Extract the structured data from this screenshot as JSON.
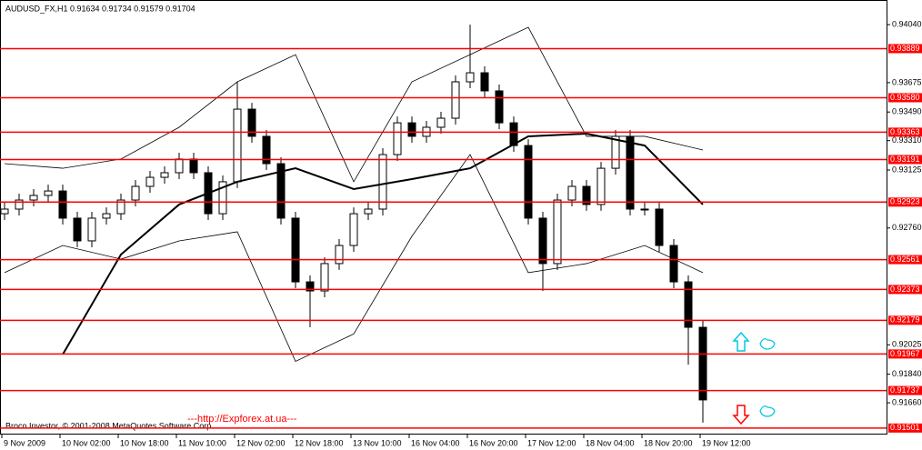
{
  "chart_data": {
    "type": "candlestick",
    "title": "AUDUSD_FX,H1  0.91634 0.91734 0.91579 0.91704",
    "footer": "Broco Investor, © 2001-2008 MetaQuotes Software Corp.",
    "link": "---http://Expforex.at.ua---",
    "categories": [
      "9 Nov 2009",
      "10 Nov 02:00",
      "10 Nov 18:00",
      "11 Nov 10:00",
      "12 Nov 02:00",
      "12 Nov 18:00",
      "13 Nov 10:00",
      "16 Nov 04:00",
      "16 Nov 20:00",
      "17 Nov 12:00",
      "18 Nov 04:00",
      "18 Nov 20:00",
      "19 Nov 12:00"
    ],
    "open": [
      0.9285,
      0.92879,
      0.92936,
      0.92965,
      0.92993,
      0.92822,
      0.92679,
      0.92822,
      0.9285,
      0.92936,
      0.93022,
      0.93079,
      0.93108,
      0.93194,
      0.93108,
      0.9285,
      0.93051,
      0.93508,
      0.93337,
      0.93165,
      0.92822,
      0.92421,
      0.92364,
      0.92536,
      0.9265,
      0.9285,
      0.92879,
      0.93222,
      0.93422,
      0.93337,
      0.93394,
      0.93451,
      0.9368,
      0.93737,
      0.93623,
      0.93422,
      0.93279,
      0.92822,
      0.92536,
      0.92936,
      0.93022,
      0.92908,
      0.93136,
      0.93337,
      0.92879,
      0.92879,
      0.9265,
      0.92421,
      0.92135
    ],
    "high": [
      0.92919,
      0.92976,
      0.93005,
      0.93033,
      0.93033,
      0.92862,
      0.92862,
      0.9289,
      0.92976,
      0.93062,
      0.93119,
      0.93148,
      0.93234,
      0.93234,
      0.93148,
      0.93091,
      0.9368,
      0.93548,
      0.93377,
      0.93205,
      0.92862,
      0.92461,
      0.92576,
      0.9269,
      0.9289,
      0.92919,
      0.93262,
      0.93462,
      0.93462,
      0.93434,
      0.93491,
      0.9372,
      0.9404,
      0.93777,
      0.93663,
      0.93462,
      0.93319,
      0.92862,
      0.92976,
      0.93062,
      0.93062,
      0.93176,
      0.93377,
      0.93377,
      0.92919,
      0.92919,
      0.9269,
      0.92461,
      0.92175
    ],
    "low": [
      0.9281,
      0.92839,
      0.92896,
      0.92925,
      0.92782,
      0.92639,
      0.92639,
      0.92782,
      0.9281,
      0.92896,
      0.92982,
      0.93039,
      0.93068,
      0.93068,
      0.9281,
      0.9281,
      0.93011,
      0.93297,
      0.93125,
      0.92782,
      0.92381,
      0.92135,
      0.92324,
      0.92496,
      0.9261,
      0.9281,
      0.92839,
      0.93182,
      0.93297,
      0.93297,
      0.93354,
      0.93411,
      0.9364,
      0.93583,
      0.93382,
      0.93239,
      0.92782,
      0.92364,
      0.92496,
      0.92896,
      0.92868,
      0.92868,
      0.93096,
      0.92839,
      0.92839,
      0.9261,
      0.92381,
      0.919,
      0.91535
    ],
    "close": [
      0.92879,
      0.92936,
      0.92965,
      0.92993,
      0.92822,
      0.92679,
      0.92822,
      0.9285,
      0.92936,
      0.93022,
      0.93079,
      0.93108,
      0.93194,
      0.93108,
      0.9285,
      0.93051,
      0.93508,
      0.93337,
      0.93165,
      0.92822,
      0.92421,
      0.92364,
      0.92536,
      0.9265,
      0.9285,
      0.92879,
      0.93222,
      0.93422,
      0.93337,
      0.93394,
      0.93451,
      0.9368,
      0.93737,
      0.93623,
      0.93422,
      0.93279,
      0.92822,
      0.92536,
      0.92936,
      0.93022,
      0.92908,
      0.93136,
      0.93337,
      0.92879,
      0.92879,
      0.9265,
      0.92421,
      0.92135,
      0.91678
    ],
    "up_color": "#ffffff",
    "down_color": "#000000",
    "series": [
      {
        "color": "#000000",
        "values": [
          null,
          0.91964,
          0.92593,
          0.92908,
          0.93051,
          0.93136,
          0.93005,
          0.93068,
          0.93136,
          0.93337,
          0.93354,
          0.93279,
          0.92908
        ]
      },
      {
        "color": "#000000",
        "values": [
          0.93165,
          0.93136,
          0.93194,
          0.93394,
          0.9368,
          0.93851,
          0.93051,
          0.9368,
          0.93851,
          0.94023,
          0.93337,
          0.93337,
          0.93251
        ]
      },
      {
        "color": "#000000",
        "values": [
          0.92479,
          0.9265,
          0.92564,
          0.92679,
          0.92736,
          0.91921,
          0.92093,
          0.92708,
          0.93222,
          0.92479,
          0.92536,
          0.9265,
          0.92479
        ]
      }
    ],
    "levels": [
      0.93889,
      {
        "value": 0.9358,
        "label": "0.93580"
      },
      0.93363,
      0.93191,
      0.92923,
      0.92561,
      0.92373,
      0.92179,
      0.91967,
      0.91737,
      0.91501
    ],
    "level_color": "#ff0000",
    "ylim": [
      0.9146,
      0.94195
    ],
    "yticks": [
      {
        "value": 0.9404,
        "label": "0.94040"
      },
      0.93675,
      {
        "value": 0.9349,
        "label": "0.93490"
      },
      {
        "value": 0.9331,
        "label": "0.93310"
      },
      0.93125,
      {
        "value": 0.9276,
        "label": "0.92760"
      },
      0.92025,
      {
        "value": 0.9184,
        "label": "0.91840"
      },
      {
        "value": 0.9166,
        "label": "0.91660"
      }
    ]
  }
}
